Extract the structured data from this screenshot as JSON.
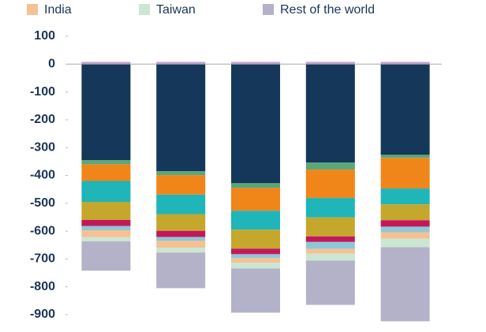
{
  "chart_data": {
    "type": "bar",
    "stacked": true,
    "categories": [
      null,
      null,
      null,
      null,
      null
    ],
    "series": [
      {
        "color": "#c29ed0",
        "values": [
          8,
          8,
          8,
          8,
          8
        ]
      },
      {
        "color": "#15375a",
        "values": [
          -345,
          -385,
          -428,
          -354,
          -326
        ]
      },
      {
        "color": "#5aa77a",
        "values": [
          -15,
          -14,
          -17,
          -25,
          -11
        ]
      },
      {
        "color": "#f08519",
        "values": [
          -60,
          -70,
          -82,
          -102,
          -110
        ]
      },
      {
        "color": "#1fb5b9",
        "values": [
          -75,
          -70,
          -68,
          -70,
          -57
        ]
      },
      {
        "color": "#c4a72c",
        "values": [
          -65,
          -60,
          -68,
          -68,
          -57
        ]
      },
      {
        "color": "#c2185b",
        "values": [
          -22,
          -22,
          -20,
          -20,
          -23
        ]
      },
      {
        "color": "#8fc7d6",
        "values": [
          -15,
          -14,
          -14,
          -25,
          -20
        ]
      },
      {
        "name": "India",
        "color": "#f5c193",
        "values": [
          -25,
          -25,
          -17,
          -17,
          -23
        ]
      },
      {
        "name": "Taiwan",
        "color": "#cbe6d3",
        "values": [
          -15,
          -17,
          -20,
          -25,
          -31
        ]
      },
      {
        "name": "Rest of the world",
        "color": "#b3b2c8",
        "values": [
          -105,
          -128,
          -159,
          -159,
          -266
        ]
      }
    ],
    "ylim": [
      -950,
      100
    ],
    "yticks": [
      100,
      0,
      -100,
      -200,
      -300,
      -400,
      -500,
      -600,
      -700,
      -800,
      -900
    ]
  }
}
